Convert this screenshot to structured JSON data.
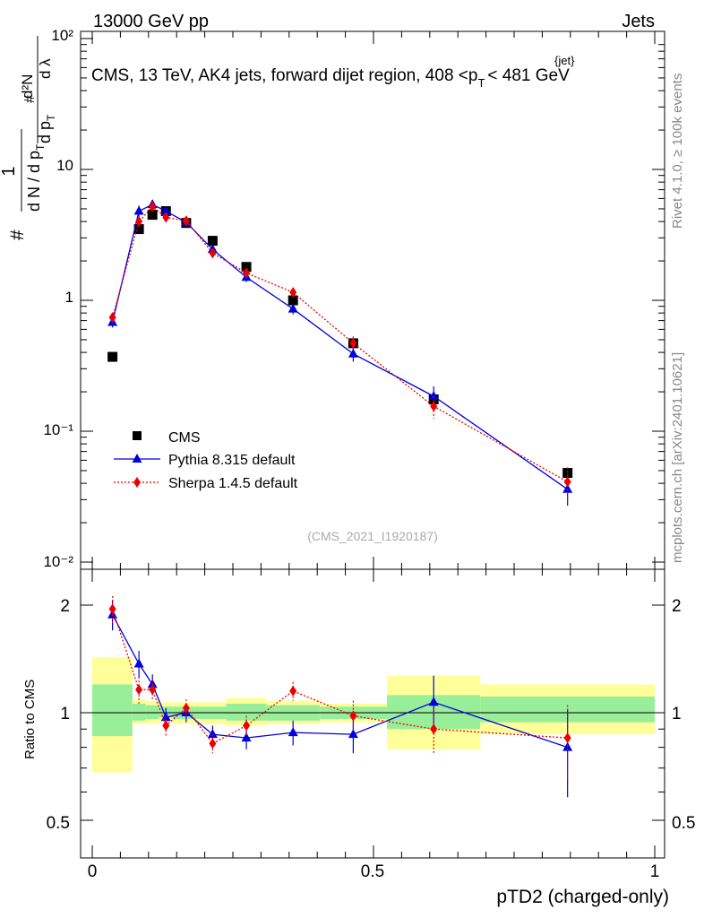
{
  "header": {
    "left": "13000 GeV pp",
    "right": "Jets"
  },
  "title": {
    "prefix": "CMS, 13 TeV, AK4 jets, forward dijet region, 408 <",
    "p": "p",
    "sub": "T",
    "sup": "{jet}",
    "suffix": "< 481 GeV"
  },
  "side_labels": {
    "rivet": "Rivet 4.1.0, ≥ 100k events",
    "mcplots": "mcplots.cern.ch [arXiv:2401.10621]"
  },
  "watermark": "(CMS_2021_I1920187)",
  "ylabel_main": {
    "hash1": "#",
    "one": "1",
    "denom_dn": "d N / d p",
    "denom_t": "T",
    "hash2": "#",
    "dp": "d p",
    "dp_t": "T",
    "num_d2n": "d²N",
    "dlambda": "d λ"
  },
  "ylabel_ratio": "Ratio to CMS",
  "xlabel": "pTD2 (charged-only)",
  "axis_main_ticks": [
    "10⁻²",
    "10⁻¹",
    "1",
    "10",
    "10²"
  ],
  "axis_ratio_ticks": [
    "0.5",
    "1",
    "2"
  ],
  "axis_x_ticks": [
    "0",
    "0.5",
    "1"
  ],
  "legend": [
    {
      "label": "CMS"
    },
    {
      "label": "Pythia 8.315 default"
    },
    {
      "label": "Sherpa 1.4.5 default"
    }
  ],
  "chart_data": {
    "type": "scatter",
    "xlim": [
      0,
      1
    ],
    "ylim_main": [
      0.01,
      100
    ],
    "ylim_ratio": [
      0.4,
      2.4
    ],
    "bins": [
      [
        0.0,
        0.0714
      ],
      [
        0.0714,
        0.0952
      ],
      [
        0.0952,
        0.119
      ],
      [
        0.119,
        0.143
      ],
      [
        0.143,
        0.19
      ],
      [
        0.19,
        0.238
      ],
      [
        0.238,
        0.31
      ],
      [
        0.31,
        0.405
      ],
      [
        0.405,
        0.524
      ],
      [
        0.524,
        0.69
      ],
      [
        0.69,
        1.0
      ]
    ],
    "x": [
      0.036,
      0.083,
      0.107,
      0.131,
      0.167,
      0.214,
      0.274,
      0.357,
      0.464,
      0.607,
      0.845
    ],
    "series": [
      {
        "name": "CMS",
        "color": "#000000",
        "values": [
          0.37,
          3.5,
          4.5,
          4.8,
          3.9,
          2.85,
          1.8,
          1.0,
          0.47,
          0.175,
          0.048
        ],
        "ratio_band_inner": [
          [
            0.86,
            1.2
          ],
          [
            0.95,
            1.06
          ],
          [
            0.96,
            1.05
          ],
          [
            0.97,
            1.04
          ],
          [
            0.96,
            1.04
          ],
          [
            0.96,
            1.04
          ],
          [
            0.95,
            1.06
          ],
          [
            0.95,
            1.05
          ],
          [
            0.96,
            1.04
          ],
          [
            0.9,
            1.12
          ],
          [
            0.94,
            1.11
          ]
        ],
        "ratio_band_outer": [
          [
            0.68,
            1.43
          ],
          [
            0.93,
            1.09
          ],
          [
            0.93,
            1.08
          ],
          [
            0.94,
            1.07
          ],
          [
            0.93,
            1.07
          ],
          [
            0.93,
            1.07
          ],
          [
            0.92,
            1.1
          ],
          [
            0.93,
            1.08
          ],
          [
            0.94,
            1.06
          ],
          [
            0.79,
            1.27
          ],
          [
            0.87,
            1.2
          ]
        ]
      },
      {
        "name": "Pythia 8.315 default",
        "color": "#0000dd",
        "values": [
          0.68,
          4.8,
          5.4,
          4.8,
          3.95,
          2.45,
          1.5,
          0.86,
          0.39,
          0.185,
          0.036
        ],
        "errors": [
          0.06,
          0.5,
          0.45,
          0.35,
          0.25,
          0.17,
          0.12,
          0.08,
          0.05,
          0.035,
          0.009
        ],
        "ratio": [
          1.88,
          1.37,
          1.2,
          0.97,
          1.0,
          0.87,
          0.85,
          0.88,
          0.87,
          1.07,
          0.8
        ],
        "ratio_err": [
          0.18,
          0.12,
          0.08,
          0.06,
          0.06,
          0.05,
          0.06,
          0.07,
          0.1,
          0.2,
          0.22
        ]
      },
      {
        "name": "Sherpa 1.4.5 default",
        "color": "#ee0000",
        "values": [
          0.74,
          4.0,
          5.2,
          4.3,
          4.05,
          2.3,
          1.62,
          1.15,
          0.47,
          0.155,
          0.041
        ],
        "errors": [
          0.06,
          0.35,
          0.4,
          0.3,
          0.25,
          0.15,
          0.12,
          0.09,
          0.06,
          0.03,
          0.012
        ],
        "ratio": [
          1.95,
          1.16,
          1.16,
          0.92,
          1.03,
          0.82,
          0.92,
          1.15,
          0.98,
          0.9,
          0.85
        ],
        "ratio_err": [
          0.17,
          0.1,
          0.08,
          0.06,
          0.06,
          0.05,
          0.06,
          0.07,
          0.1,
          0.13,
          0.2
        ]
      }
    ]
  }
}
